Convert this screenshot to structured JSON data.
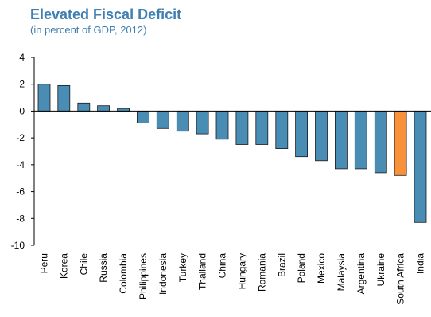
{
  "chart_data": {
    "type": "bar",
    "title": "Elevated Fiscal Deficit",
    "subtitle": "(in percent of GDP, 2012)",
    "xlabel": "",
    "ylabel": "",
    "ylim": [
      -10,
      4
    ],
    "yticks": [
      4,
      2,
      0,
      -2,
      -4,
      -6,
      -8,
      -10
    ],
    "grid": false,
    "categories": [
      "Peru",
      "Korea",
      "Chile",
      "Russia",
      "Colombia",
      "Philippines",
      "Indonesia",
      "Turkey",
      "Thailand",
      "China",
      "Hungary",
      "Romania",
      "Brazil",
      "Poland",
      "Mexico",
      "Malaysia",
      "Argentina",
      "Ukraine",
      "South Africa",
      "India"
    ],
    "values": [
      2.0,
      1.9,
      0.6,
      0.4,
      0.2,
      -0.9,
      -1.3,
      -1.5,
      -1.7,
      -2.1,
      -2.5,
      -2.5,
      -2.8,
      -3.4,
      -3.7,
      -4.3,
      -4.3,
      -4.6,
      -4.8,
      -8.3
    ],
    "colors": {
      "default": "#4a8db4",
      "highlight": "#f7923a",
      "title": "#3f7fb2"
    },
    "highlight_category": "South Africa"
  }
}
